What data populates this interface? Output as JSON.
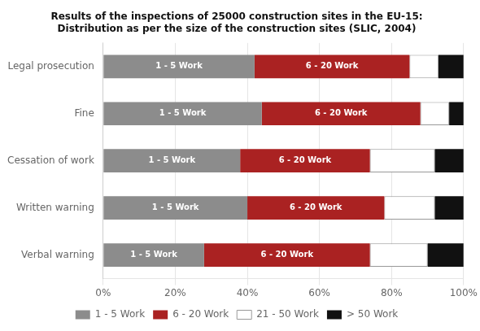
{
  "chart_data": {
    "type": "bar",
    "orientation": "horizontal",
    "stacked": true,
    "title": "Results of the inspections of 25000 construction sites in the EU-15:\nDistribution as per the size of the construction sites (SLIC, 2004)",
    "categories": [
      "Legal prosecution",
      "Fine",
      "Cessation of work",
      "Written warning",
      "Verbal warning"
    ],
    "series": [
      {
        "name": "1 - 5 Work",
        "color": "#8c8c8c",
        "values": [
          42,
          44,
          38,
          40,
          28
        ]
      },
      {
        "name": "6 - 20 Work",
        "color": "#aa2222",
        "values": [
          43,
          44,
          36,
          38,
          46
        ]
      },
      {
        "name": "21 - 50 Work",
        "color": "#ffffff",
        "values": [
          8,
          8,
          18,
          14,
          16
        ]
      },
      {
        "name": "> 50 Work",
        "color": "#111111",
        "values": [
          7,
          4,
          8,
          8,
          10
        ]
      }
    ],
    "annotations": [
      {
        "text": "1 - 5 Work",
        "series": "1 - 5 Work"
      },
      {
        "text": "6 - 20 Work",
        "series": "6 - 20 Work"
      }
    ],
    "xlim": [
      0,
      100
    ],
    "xticks": [
      {
        "value": 0,
        "label": "0%"
      },
      {
        "value": 20,
        "label": "20%"
      },
      {
        "value": 40,
        "label": "40%"
      },
      {
        "value": 60,
        "label": "60%"
      },
      {
        "value": 80,
        "label": "80%"
      },
      {
        "value": 100,
        "label": "100%"
      }
    ],
    "grid": true,
    "legend": "bottom"
  }
}
